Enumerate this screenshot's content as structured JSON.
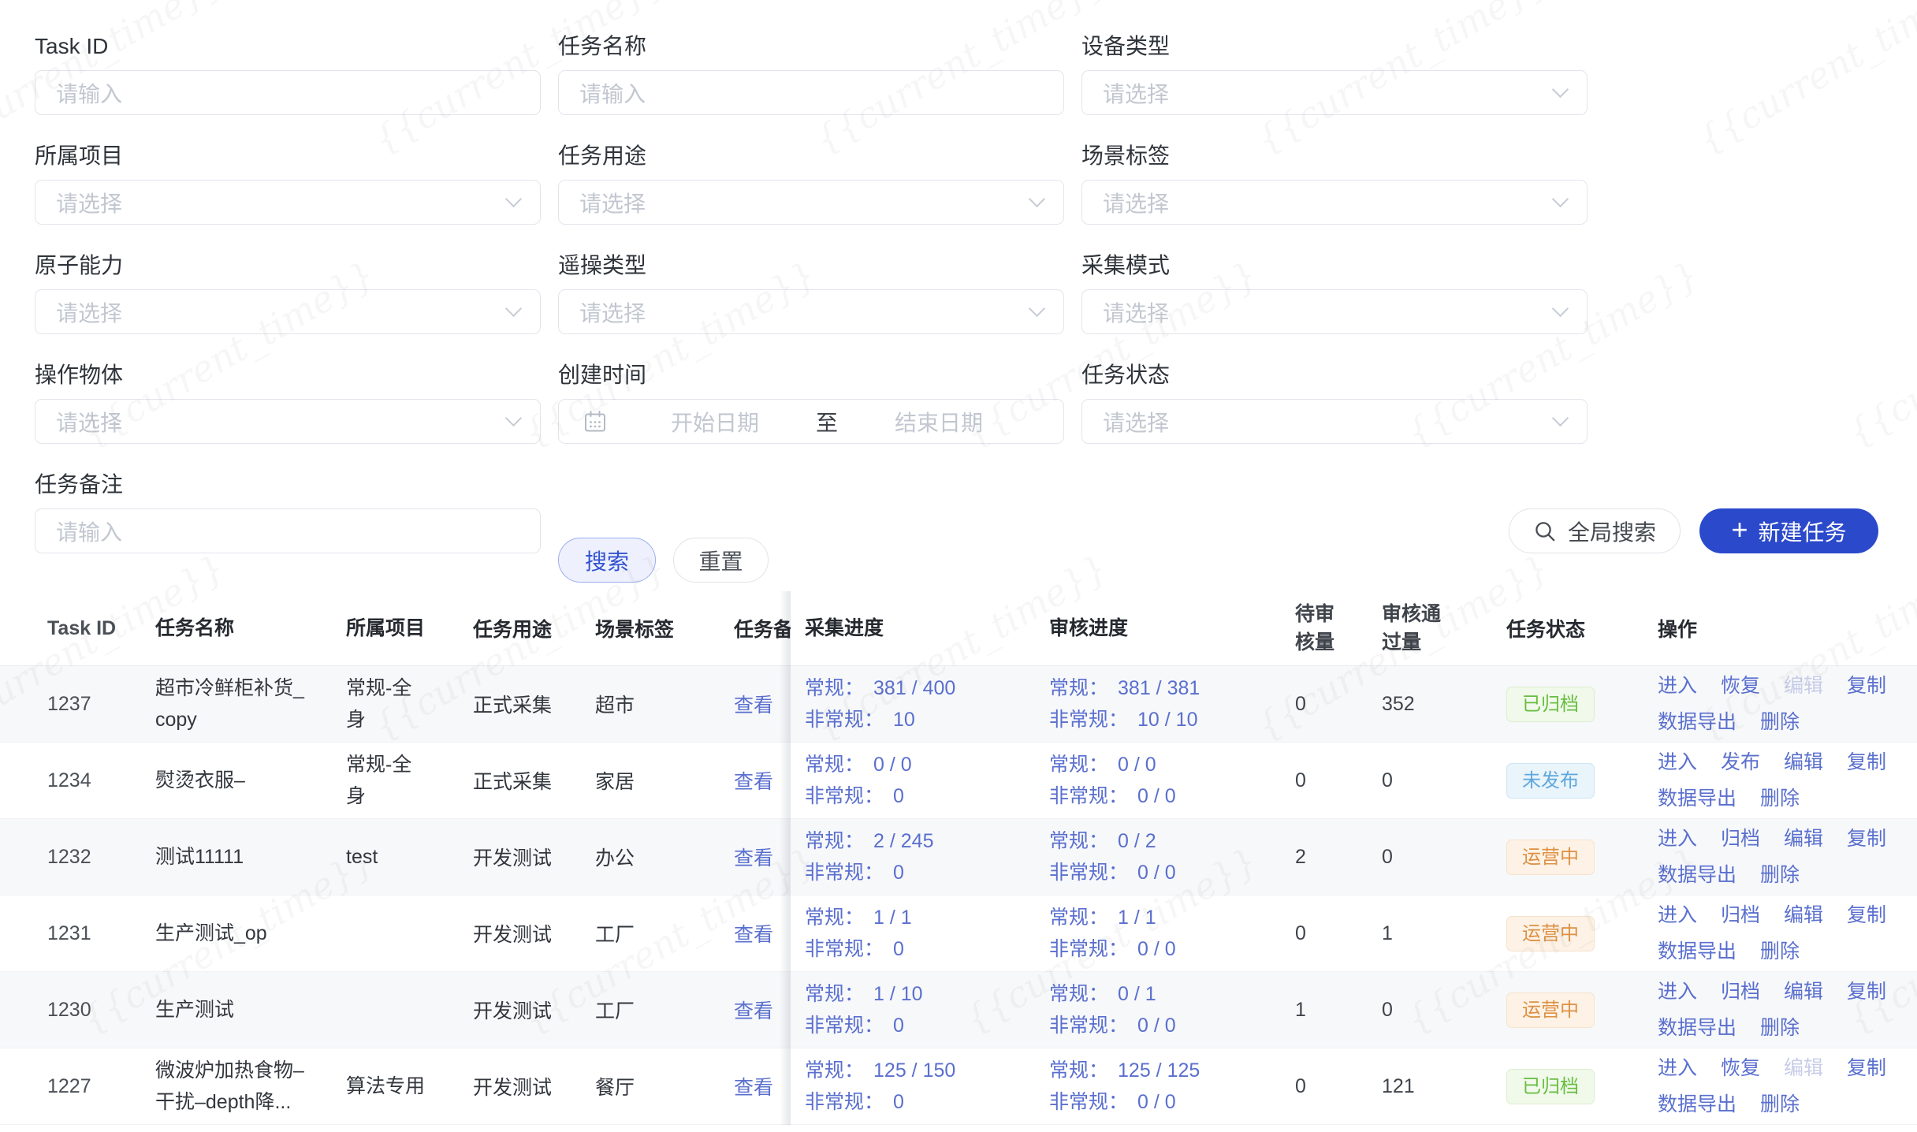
{
  "watermark": {
    "text": "{{current_time}}"
  },
  "colors": {
    "accent_blue": "#2b49cb",
    "link_blue": "#5a6fce",
    "status_archived_green": "#68bd41",
    "status_unpublished_blue": "#5fa8dd",
    "status_running_orange": "#dd9043",
    "row_stripe": "#f7f8fa"
  },
  "filters": {
    "input_placeholder": "请输入",
    "select_placeholder": "请选择",
    "fields": [
      {
        "label": "Task ID",
        "type": "input"
      },
      {
        "label": "任务名称",
        "type": "input"
      },
      {
        "label": "设备类型",
        "type": "select"
      },
      {
        "label": "所属项目",
        "type": "select"
      },
      {
        "label": "任务用途",
        "type": "select"
      },
      {
        "label": "场景标签",
        "type": "select"
      },
      {
        "label": "原子能力",
        "type": "select"
      },
      {
        "label": "遥操类型",
        "type": "select"
      },
      {
        "label": "采集模式",
        "type": "select"
      },
      {
        "label": "操作物体",
        "type": "select"
      },
      {
        "label": "创建时间",
        "type": "daterange",
        "start_placeholder": "开始日期",
        "separator": "至",
        "end_placeholder": "结束日期"
      },
      {
        "label": "任务状态",
        "type": "select"
      },
      {
        "label": "任务备注",
        "type": "input"
      }
    ],
    "search_label": "搜索",
    "reset_label": "重置",
    "global_search_label": "全局搜索",
    "new_task_label": "新建任务"
  },
  "table": {
    "columns": [
      "Task ID",
      "任务名称",
      "所属项目",
      "任务用途",
      "场景标签",
      "任务备注",
      "采集进度",
      "审核进度",
      "待审核量",
      "审核通过量",
      "任务状态",
      "操作"
    ],
    "rows": [
      {
        "id": "1237",
        "name": "超市冷鲜柜补货_copy",
        "project": "常规-全身",
        "purpose": "正式采集",
        "scene": "超市",
        "remark_link": "查看",
        "collect": {
          "label1": "常规：",
          "value1": "381 / 400",
          "label2": "非常规：",
          "value2": "10"
        },
        "review": {
          "label1": "常规：",
          "value1": "381 / 381",
          "label2": "非常规：",
          "value2": "10 / 10"
        },
        "pending": "0",
        "approved": "352",
        "status": {
          "label": "已归档",
          "type": "archived"
        },
        "actions": [
          {
            "label": "进入"
          },
          {
            "label": "恢复"
          },
          {
            "label": "编辑",
            "disabled": true
          },
          {
            "label": "复制"
          },
          {
            "label": "数据导出"
          },
          {
            "label": "删除"
          }
        ]
      },
      {
        "id": "1234",
        "name": "熨烫衣服–",
        "project": "常规-全身",
        "purpose": "正式采集",
        "scene": "家居",
        "remark_link": "查看",
        "collect": {
          "label1": "常规：",
          "value1": "0 / 0",
          "label2": "非常规：",
          "value2": "0"
        },
        "review": {
          "label1": "常规：",
          "value1": "0 / 0",
          "label2": "非常规：",
          "value2": "0 / 0"
        },
        "pending": "0",
        "approved": "0",
        "status": {
          "label": "未发布",
          "type": "unpublished"
        },
        "actions": [
          {
            "label": "进入"
          },
          {
            "label": "发布"
          },
          {
            "label": "编辑"
          },
          {
            "label": "复制"
          },
          {
            "label": "数据导出"
          },
          {
            "label": "删除"
          }
        ]
      },
      {
        "id": "1232",
        "name": "测试11111",
        "project": "test",
        "purpose": "开发测试",
        "scene": "办公",
        "remark_link": "查看",
        "collect": {
          "label1": "常规：",
          "value1": "2 / 245",
          "label2": "非常规：",
          "value2": "0"
        },
        "review": {
          "label1": "常规：",
          "value1": "0 / 2",
          "label2": "非常规：",
          "value2": "0 / 0"
        },
        "pending": "2",
        "approved": "0",
        "status": {
          "label": "运营中",
          "type": "running"
        },
        "actions": [
          {
            "label": "进入"
          },
          {
            "label": "归档"
          },
          {
            "label": "编辑"
          },
          {
            "label": "复制"
          },
          {
            "label": "数据导出"
          },
          {
            "label": "删除"
          }
        ]
      },
      {
        "id": "1231",
        "name": "生产测试_op",
        "project": "",
        "purpose": "开发测试",
        "scene": "工厂",
        "remark_link": "查看",
        "collect": {
          "label1": "常规：",
          "value1": "1 / 1",
          "label2": "非常规：",
          "value2": "0"
        },
        "review": {
          "label1": "常规：",
          "value1": "1 / 1",
          "label2": "非常规：",
          "value2": "0 / 0"
        },
        "pending": "0",
        "approved": "1",
        "status": {
          "label": "运营中",
          "type": "running"
        },
        "actions": [
          {
            "label": "进入"
          },
          {
            "label": "归档"
          },
          {
            "label": "编辑"
          },
          {
            "label": "复制"
          },
          {
            "label": "数据导出"
          },
          {
            "label": "删除"
          }
        ]
      },
      {
        "id": "1230",
        "name": "生产测试",
        "project": "",
        "purpose": "开发测试",
        "scene": "工厂",
        "remark_link": "查看",
        "collect": {
          "label1": "常规：",
          "value1": "1 / 10",
          "label2": "非常规：",
          "value2": "0"
        },
        "review": {
          "label1": "常规：",
          "value1": "0 / 1",
          "label2": "非常规：",
          "value2": "0 / 0"
        },
        "pending": "1",
        "approved": "0",
        "status": {
          "label": "运营中",
          "type": "running"
        },
        "actions": [
          {
            "label": "进入"
          },
          {
            "label": "归档"
          },
          {
            "label": "编辑"
          },
          {
            "label": "复制"
          },
          {
            "label": "数据导出"
          },
          {
            "label": "删除"
          }
        ]
      },
      {
        "id": "1227",
        "name": "微波炉加热食物–干扰–depth降...",
        "project": "算法专用",
        "purpose": "开发测试",
        "scene": "餐厅",
        "remark_link": "查看",
        "collect": {
          "label1": "常规：",
          "value1": "125 / 150",
          "label2": "非常规：",
          "value2": "0"
        },
        "review": {
          "label1": "常规：",
          "value1": "125 / 125",
          "label2": "非常规：",
          "value2": "0 / 0"
        },
        "pending": "0",
        "approved": "121",
        "status": {
          "label": "已归档",
          "type": "archived"
        },
        "actions": [
          {
            "label": "进入"
          },
          {
            "label": "恢复"
          },
          {
            "label": "编辑",
            "disabled": true
          },
          {
            "label": "复制"
          },
          {
            "label": "数据导出"
          },
          {
            "label": "删除"
          }
        ]
      }
    ]
  }
}
